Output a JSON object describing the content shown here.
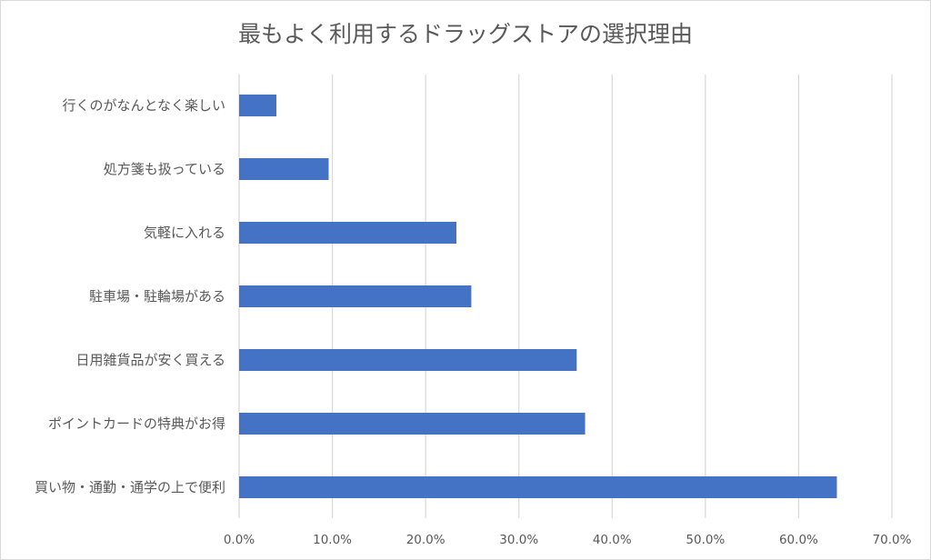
{
  "chart_data": {
    "type": "bar",
    "orientation": "horizontal",
    "title": "最もよく利用するドラッグストアの選択理由",
    "categories": [
      "行くのがなんとなく楽しい",
      "処方箋も扱っている",
      "気軽に入れる",
      "駐車場・駐輪場がある",
      "日用雑貨品が安く買える",
      "ポイントカードの特典がお得",
      "買い物・通勤・通学の上で便利"
    ],
    "values": [
      4.0,
      9.6,
      23.3,
      24.9,
      36.2,
      37.1,
      64.1
    ],
    "xlim": [
      0,
      70
    ],
    "xticks": [
      0,
      10,
      20,
      30,
      40,
      50,
      60,
      70
    ],
    "tick_labels": [
      "0.0%",
      "10.0%",
      "20.0%",
      "30.0%",
      "40.0%",
      "50.0%",
      "60.0%",
      "70.0%"
    ],
    "xlabel": "",
    "ylabel": "",
    "grid": true,
    "legend": "none",
    "colors": {
      "bar": "#4472c4",
      "grid": "#d9d9d9",
      "text": "#595959"
    }
  }
}
